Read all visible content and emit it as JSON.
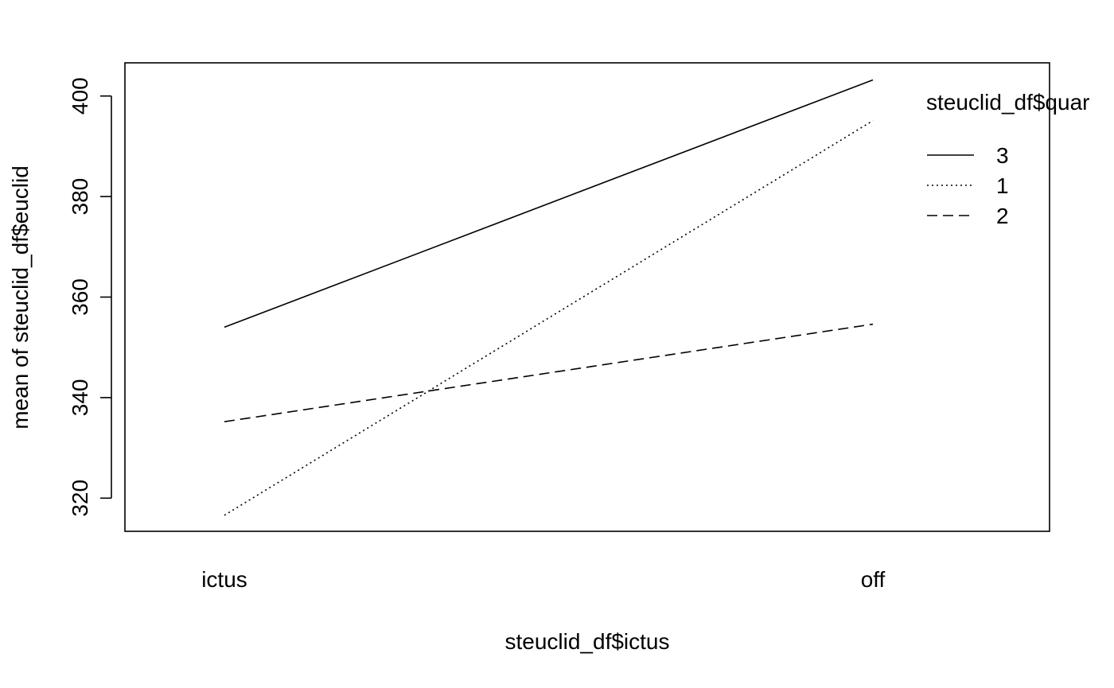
{
  "chart_data": {
    "type": "line",
    "title": "",
    "xlabel": "steuclid_df$ictus",
    "ylabel": "mean of  steuclid_df$euclid",
    "categories": [
      "ictus",
      "off"
    ],
    "ylim": [
      313.4,
      406.6
    ],
    "yticks": [
      320,
      340,
      360,
      380,
      400
    ],
    "legend": {
      "title": "steuclid_df$quar",
      "position": "top-right"
    },
    "series": [
      {
        "name": "3",
        "linestyle": "solid",
        "values": [
          354.0,
          403.2
        ]
      },
      {
        "name": "1",
        "linestyle": "dotted",
        "values": [
          316.6,
          395.1
        ]
      },
      {
        "name": "2",
        "linestyle": "dashed",
        "values": [
          335.2,
          354.6
        ]
      }
    ],
    "grid": false
  }
}
